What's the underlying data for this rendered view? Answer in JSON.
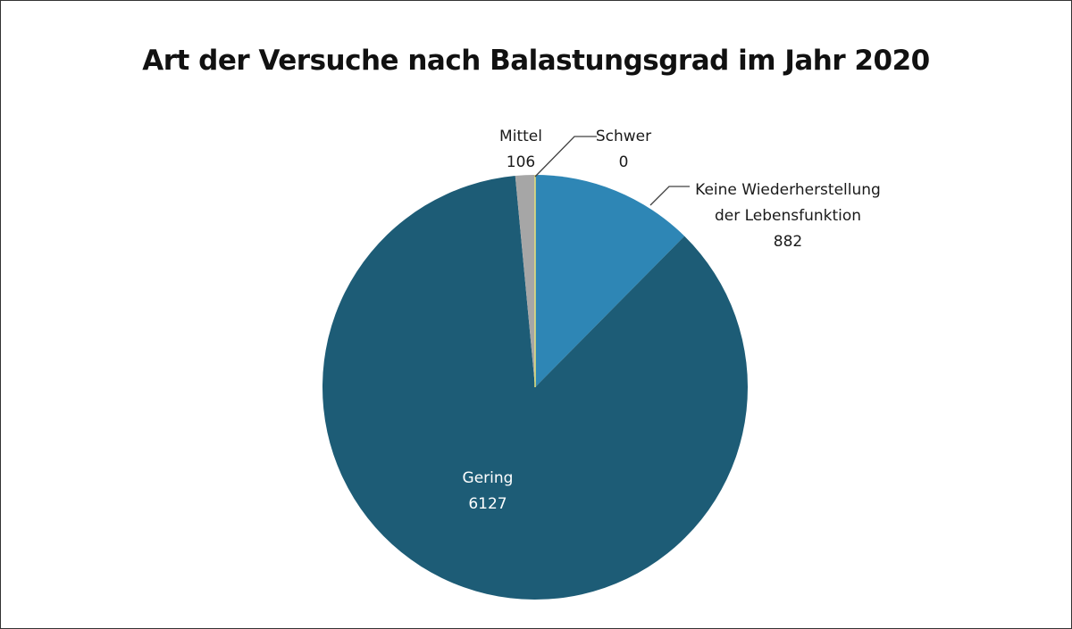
{
  "chart_data": {
    "type": "pie",
    "title": "Art der Versuche nach Balastungsgrad im Jahr 2020",
    "slices": [
      {
        "name": "Keine Wiederherstellung der Lebensfunktion",
        "label_lines": [
          "Keine Wiederherstellung",
          "der Lebensfunktion"
        ],
        "value": 882,
        "color": "#2e86b5"
      },
      {
        "name": "Gering",
        "label_lines": [
          "Gering"
        ],
        "value": 6127,
        "color": "#1d5c76"
      },
      {
        "name": "Mittel",
        "label_lines": [
          "Mittel"
        ],
        "value": 106,
        "color": "#a6a6a6"
      },
      {
        "name": "Schwer",
        "label_lines": [
          "Schwer"
        ],
        "value": 0,
        "color": "#e8e27a"
      }
    ],
    "start_angle": "12 o'clock",
    "direction": "clockwise",
    "legend": "none"
  }
}
